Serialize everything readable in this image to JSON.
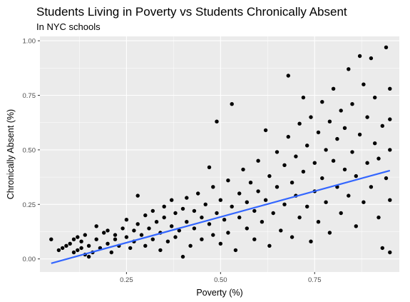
{
  "chart_data": {
    "type": "scatter",
    "title": "Students Living in Poverty vs Students Chronically Absent",
    "subtitle": "In NYC schools",
    "xlabel": "Poverty (%)",
    "ylabel": "Chronically Absent (%)",
    "xlim": [
      0.02,
      0.975
    ],
    "ylim": [
      -0.06,
      1.02
    ],
    "x_ticks": [
      0.25,
      0.5,
      0.75
    ],
    "x_tick_labels": [
      "0.25",
      "0.50",
      "0.75"
    ],
    "y_ticks": [
      0.0,
      0.25,
      0.5,
      0.75,
      1.0
    ],
    "y_tick_labels": [
      "0.00",
      "0.25",
      "0.50",
      "0.75",
      "1.00"
    ],
    "grid": true,
    "trend_line": {
      "method": "linear",
      "color": "#3366FF",
      "points": [
        [
          0.05,
          -0.02
        ],
        [
          0.95,
          0.405
        ]
      ]
    },
    "colors": {
      "panel_background": "#EBEBEB",
      "grid_major": "#FFFFFF",
      "points": "#000000",
      "trend": "#3366FF"
    },
    "series": [
      {
        "values": [
          [
            0.05,
            0.09
          ],
          [
            0.07,
            0.04
          ],
          [
            0.08,
            0.05
          ],
          [
            0.09,
            0.06
          ],
          [
            0.1,
            0.07
          ],
          [
            0.11,
            0.03
          ],
          [
            0.11,
            0.09
          ],
          [
            0.12,
            0.04
          ],
          [
            0.12,
            0.1
          ],
          [
            0.13,
            0.05
          ],
          [
            0.13,
            0.08
          ],
          [
            0.14,
            0.02
          ],
          [
            0.14,
            0.11
          ],
          [
            0.15,
            0.06
          ],
          [
            0.15,
            0.01
          ],
          [
            0.16,
            0.03
          ],
          [
            0.17,
            0.15
          ],
          [
            0.17,
            0.09
          ],
          [
            0.18,
            0.05
          ],
          [
            0.19,
            0.12
          ],
          [
            0.2,
            0.07
          ],
          [
            0.2,
            0.13
          ],
          [
            0.21,
            0.03
          ],
          [
            0.22,
            0.11
          ],
          [
            0.22,
            0.09
          ],
          [
            0.23,
            0.06
          ],
          [
            0.24,
            0.14
          ],
          [
            0.25,
            0.18
          ],
          [
            0.25,
            0.1
          ],
          [
            0.26,
            0.05
          ],
          [
            0.27,
            0.13
          ],
          [
            0.27,
            0.08
          ],
          [
            0.28,
            0.29
          ],
          [
            0.28,
            0.16
          ],
          [
            0.29,
            0.11
          ],
          [
            0.3,
            0.06
          ],
          [
            0.3,
            0.2
          ],
          [
            0.31,
            0.14
          ],
          [
            0.32,
            0.09
          ],
          [
            0.32,
            0.22
          ],
          [
            0.33,
            0.17
          ],
          [
            0.34,
            0.04
          ],
          [
            0.34,
            0.12
          ],
          [
            0.35,
            0.24
          ],
          [
            0.35,
            0.19
          ],
          [
            0.36,
            0.08
          ],
          [
            0.37,
            0.15
          ],
          [
            0.37,
            0.27
          ],
          [
            0.38,
            0.21
          ],
          [
            0.38,
            0.1
          ],
          [
            0.39,
            0.13
          ],
          [
            0.4,
            0.01
          ],
          [
            0.4,
            0.23
          ],
          [
            0.41,
            0.17
          ],
          [
            0.41,
            0.28
          ],
          [
            0.42,
            0.06
          ],
          [
            0.43,
            0.22
          ],
          [
            0.43,
            0.14
          ],
          [
            0.44,
            0.3
          ],
          [
            0.45,
            0.19
          ],
          [
            0.45,
            0.09
          ],
          [
            0.46,
            0.25
          ],
          [
            0.47,
            0.42
          ],
          [
            0.47,
            0.16
          ],
          [
            0.48,
            0.11
          ],
          [
            0.48,
            0.33
          ],
          [
            0.49,
            0.63
          ],
          [
            0.49,
            0.21
          ],
          [
            0.5,
            0.27
          ],
          [
            0.5,
            0.07
          ],
          [
            0.51,
            0.18
          ],
          [
            0.52,
            0.36
          ],
          [
            0.52,
            0.12
          ],
          [
            0.53,
            0.71
          ],
          [
            0.53,
            0.24
          ],
          [
            0.54,
            0.04
          ],
          [
            0.55,
            0.3
          ],
          [
            0.55,
            0.19
          ],
          [
            0.56,
            0.41
          ],
          [
            0.57,
            0.14
          ],
          [
            0.57,
            0.26
          ],
          [
            0.58,
            0.35
          ],
          [
            0.59,
            0.09
          ],
          [
            0.59,
            0.22
          ],
          [
            0.6,
            0.45
          ],
          [
            0.6,
            0.31
          ],
          [
            0.61,
            0.17
          ],
          [
            0.62,
            0.59
          ],
          [
            0.62,
            0.27
          ],
          [
            0.63,
            0.38
          ],
          [
            0.63,
            0.06
          ],
          [
            0.64,
            0.21
          ],
          [
            0.65,
            0.49
          ],
          [
            0.65,
            0.33
          ],
          [
            0.66,
            0.13
          ],
          [
            0.67,
            0.43
          ],
          [
            0.67,
            0.25
          ],
          [
            0.68,
            0.56
          ],
          [
            0.68,
            0.84
          ],
          [
            0.69,
            0.35
          ],
          [
            0.69,
            0.1
          ],
          [
            0.7,
            0.47
          ],
          [
            0.7,
            0.29
          ],
          [
            0.71,
            0.62
          ],
          [
            0.71,
            0.19
          ],
          [
            0.72,
            0.74
          ],
          [
            0.72,
            0.4
          ],
          [
            0.73,
            0.52
          ],
          [
            0.73,
            0.24
          ],
          [
            0.74,
            0.65
          ],
          [
            0.74,
            0.08
          ],
          [
            0.75,
            0.44
          ],
          [
            0.75,
            0.31
          ],
          [
            0.76,
            0.58
          ],
          [
            0.76,
            0.17
          ],
          [
            0.77,
            0.72
          ],
          [
            0.77,
            0.37
          ],
          [
            0.78,
            0.5
          ],
          [
            0.78,
            0.26
          ],
          [
            0.79,
            0.63
          ],
          [
            0.79,
            0.12
          ],
          [
            0.8,
            0.45
          ],
          [
            0.8,
            0.78
          ],
          [
            0.81,
            0.33
          ],
          [
            0.81,
            0.55
          ],
          [
            0.82,
            0.68
          ],
          [
            0.82,
            0.21
          ],
          [
            0.83,
            0.41
          ],
          [
            0.83,
            0.6
          ],
          [
            0.84,
            0.87
          ],
          [
            0.84,
            0.29
          ],
          [
            0.85,
            0.49
          ],
          [
            0.85,
            0.71
          ],
          [
            0.86,
            0.15
          ],
          [
            0.86,
            0.38
          ],
          [
            0.87,
            0.93
          ],
          [
            0.87,
            0.57
          ],
          [
            0.88,
            0.26
          ],
          [
            0.88,
            0.8
          ],
          [
            0.89,
            0.44
          ],
          [
            0.89,
            0.65
          ],
          [
            0.9,
            0.92
          ],
          [
            0.9,
            0.33
          ],
          [
            0.91,
            0.53
          ],
          [
            0.91,
            0.74
          ],
          [
            0.92,
            0.19
          ],
          [
            0.92,
            0.46
          ],
          [
            0.93,
            0.61
          ],
          [
            0.93,
            0.05
          ],
          [
            0.94,
            0.97
          ],
          [
            0.94,
            0.37
          ],
          [
            0.95,
            0.5
          ],
          [
            0.95,
            0.78
          ],
          [
            0.95,
            0.27
          ],
          [
            0.95,
            0.03
          ],
          [
            0.95,
            0.64
          ]
        ]
      }
    ]
  }
}
